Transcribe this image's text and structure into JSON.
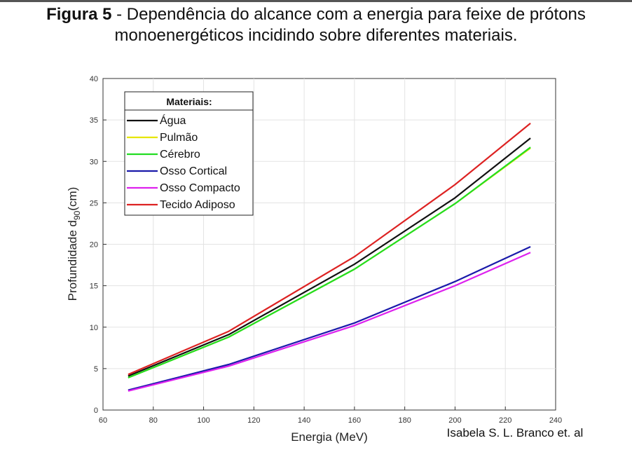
{
  "caption": {
    "figure_label": "Figura 5",
    "text": " - Dependência do alcance com a energia para feixe de prótons monoenergéticos incidindo sobre diferentes materiais."
  },
  "credit": "Isabela S. L. Branco et. al",
  "chart_data": {
    "type": "line",
    "title": "",
    "xlabel": "Energia (MeV)",
    "ylabel_main": "Profundidade d",
    "ylabel_sub": "90",
    "ylabel_unit": "(cm)",
    "xlim": [
      60,
      240
    ],
    "ylim": [
      0,
      40
    ],
    "xticks": [
      60,
      80,
      100,
      120,
      140,
      160,
      180,
      200,
      220,
      240
    ],
    "yticks": [
      0,
      5,
      10,
      15,
      20,
      25,
      30,
      35,
      40
    ],
    "grid": true,
    "legend_title": "Materiais:",
    "legend_position": "top-left",
    "x": [
      70,
      110,
      160,
      200,
      230
    ],
    "series": [
      {
        "name": "Água",
        "color": "#111111",
        "values": [
          4.1,
          9.1,
          17.6,
          25.6,
          32.8
        ]
      },
      {
        "name": "Pulmão",
        "color": "#e6e600",
        "values": [
          3.9,
          8.8,
          17.0,
          24.9,
          31.6
        ]
      },
      {
        "name": "Cérebro",
        "color": "#22dd22",
        "values": [
          3.9,
          8.8,
          17.0,
          24.9,
          31.7
        ]
      },
      {
        "name": "Osso Cortical",
        "color": "#1a1aaa",
        "values": [
          2.4,
          5.5,
          10.5,
          15.5,
          19.7
        ]
      },
      {
        "name": "Osso Compacto",
        "color": "#dd22ee",
        "values": [
          2.3,
          5.3,
          10.2,
          15.0,
          19.0
        ]
      },
      {
        "name": "Tecido Adiposo",
        "color": "#dd2222",
        "values": [
          4.3,
          9.5,
          18.5,
          27.2,
          34.6
        ]
      }
    ]
  }
}
